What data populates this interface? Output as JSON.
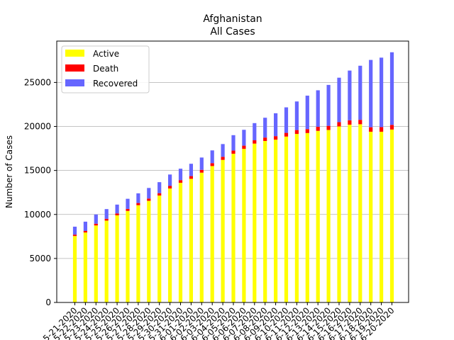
{
  "chart_data": {
    "type": "bar",
    "title": "Afghanistan",
    "subtitle": "All Cases",
    "xlabel": "",
    "ylabel": "Number of Cases",
    "ylim": [
      0,
      29700
    ],
    "yticks": [
      0,
      5000,
      10000,
      15000,
      20000,
      25000
    ],
    "grid": "horizontal",
    "legend_position": "top-left",
    "stacked": true,
    "categories": [
      "5-21-2020",
      "5-22-2020",
      "5-23-2020",
      "5-24-2020",
      "5-25-2020",
      "5-26-2020",
      "5-27-2020",
      "5-28-2020",
      "5-29-2020",
      "5-30-2020",
      "5-31-2020",
      "6-01-2020",
      "6-02-2020",
      "6-03-2020",
      "6-04-2020",
      "6-05-2020",
      "6-06-2020",
      "6-07-2020",
      "6-08-2020",
      "6-09-2020",
      "6-10-2020",
      "6-11-2020",
      "6-12-2020",
      "6-13-2020",
      "6-14-2020",
      "6-15-2020",
      "6-16-2020",
      "6-17-2020",
      "6-18-2020",
      "6-19-2020",
      "6-20-2020"
    ],
    "series": [
      {
        "name": "Active",
        "color": "#ffff00",
        "values": [
          7550,
          7950,
          8750,
          9300,
          9900,
          10400,
          11050,
          11550,
          12150,
          12950,
          13600,
          14050,
          14750,
          15500,
          16200,
          16900,
          17450,
          18050,
          18350,
          18500,
          18850,
          19150,
          19250,
          19500,
          19600,
          20000,
          20200,
          20250,
          19400,
          19400,
          19650
        ]
      },
      {
        "name": "Death",
        "color": "#ff0000",
        "values": [
          160,
          180,
          200,
          210,
          220,
          230,
          250,
          260,
          270,
          290,
          300,
          310,
          320,
          330,
          350,
          360,
          370,
          380,
          390,
          400,
          420,
          440,
          450,
          460,
          470,
          490,
          500,
          500,
          510,
          520,
          530
        ]
      },
      {
        "name": "Recovered",
        "color": "#6666ff",
        "values": [
          900,
          1050,
          1050,
          1100,
          1000,
          1150,
          1100,
          1200,
          1250,
          1300,
          1300,
          1400,
          1400,
          1450,
          1450,
          1750,
          1800,
          1950,
          2250,
          2600,
          2900,
          3250,
          3800,
          4150,
          4650,
          5050,
          5650,
          6150,
          7650,
          7900,
          8250
        ]
      }
    ]
  }
}
